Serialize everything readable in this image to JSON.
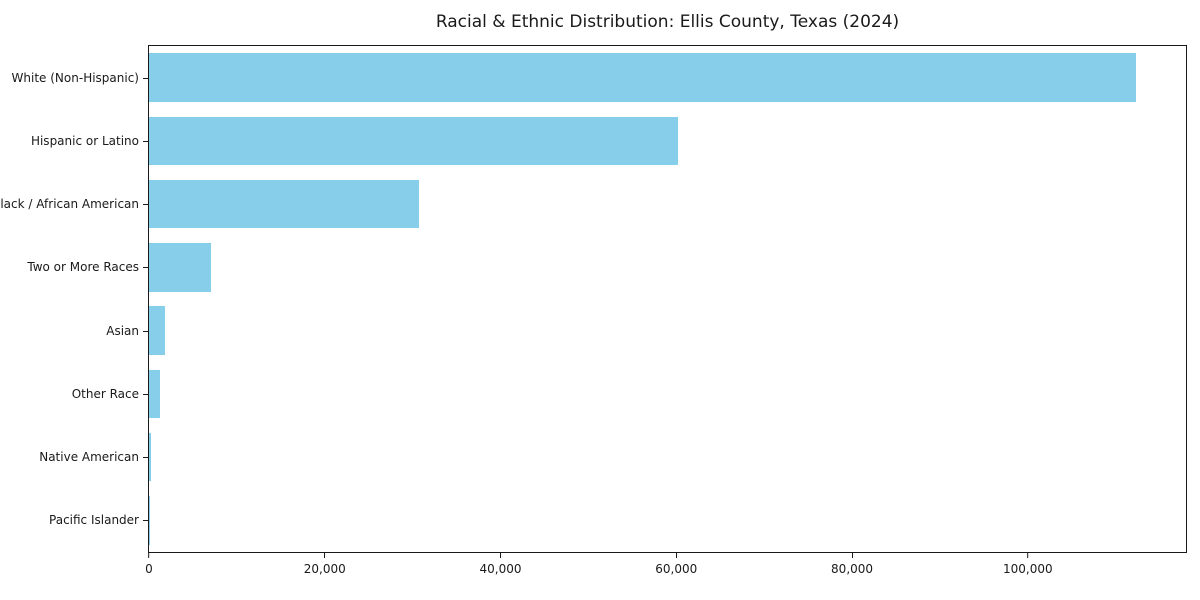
{
  "chart_data": {
    "type": "bar",
    "orientation": "horizontal",
    "title": "Racial & Ethnic Distribution: Ellis County, Texas (2024)",
    "categories": [
      "White (Non-Hispanic)",
      "Hispanic or Latino",
      "Black / African American",
      "Two or More Races",
      "Asian",
      "Other Race",
      "Native American",
      "Pacific Islander"
    ],
    "values": [
      112300,
      60200,
      30700,
      7000,
      1800,
      1200,
      250,
      100
    ],
    "xlabel": "",
    "ylabel": "",
    "xlim": [
      0,
      118000
    ],
    "xticks": [
      0,
      20000,
      40000,
      60000,
      80000,
      100000
    ],
    "xtick_labels": [
      "0",
      "20,000",
      "40,000",
      "60,000",
      "80,000",
      "100,000"
    ],
    "bar_color": "#87ceeb",
    "grid": false,
    "legend_position": "none"
  }
}
